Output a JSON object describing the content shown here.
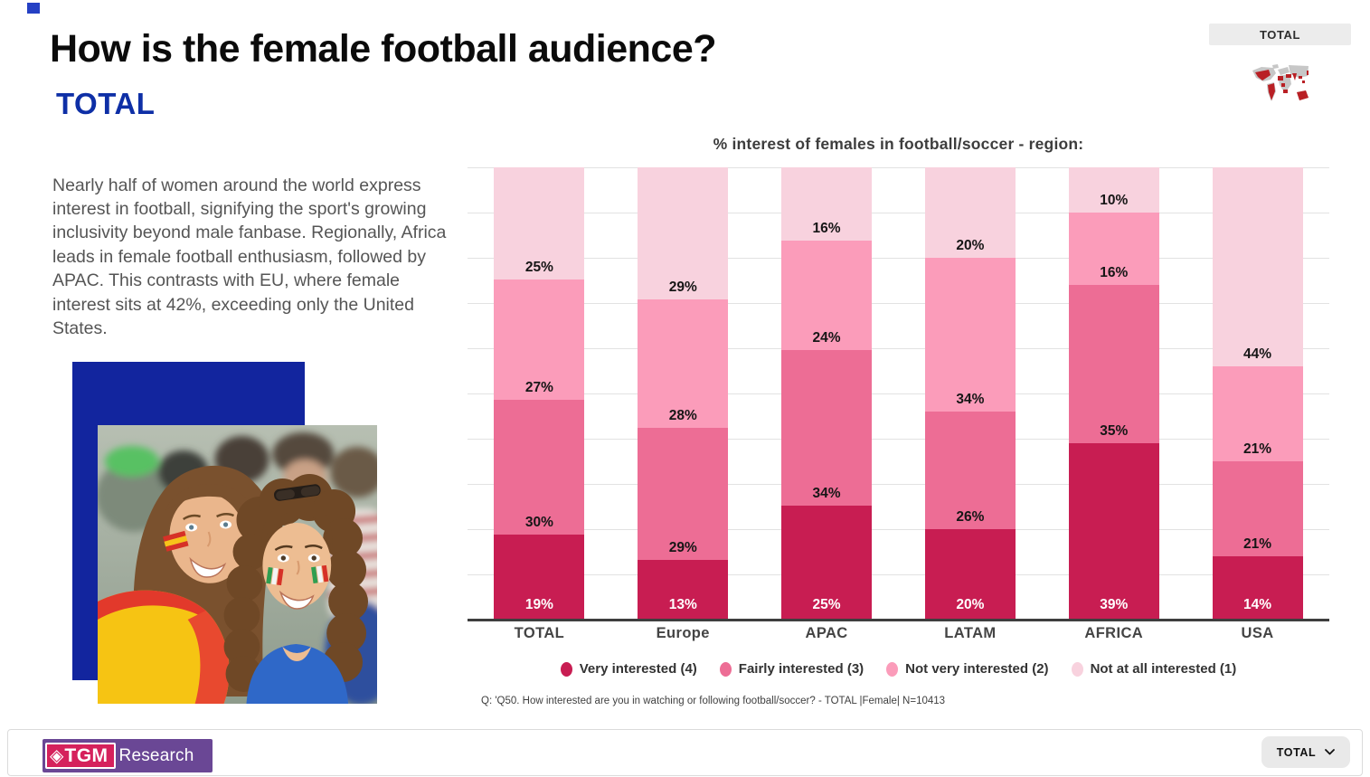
{
  "header": {
    "title": "How is the female football audience?",
    "subtitle": "TOTAL",
    "description": "Nearly half of women around the world express interest in football, signifying the sport's growing inclusivity beyond male fanbase. Regionally, Africa leads in female football enthusiasm, followed by APAC. This contrasts with EU, where female interest sits at 42%, exceeding only the United States."
  },
  "region_selector": {
    "label": "TOTAL"
  },
  "chart_data": {
    "type": "bar",
    "variant": "stacked-100-percent",
    "title": "% interest of females in football/soccer -  region:",
    "categories": [
      "TOTAL",
      "Europe",
      "APAC",
      "LATAM",
      "AFRICA",
      "USA"
    ],
    "series": [
      {
        "name": "Very interested (4)",
        "color": "#c81d52",
        "values": [
          19,
          13,
          25,
          20,
          39,
          14
        ]
      },
      {
        "name": "Fairly interested (3)",
        "color": "#ed6d95",
        "values": [
          30,
          29,
          34,
          26,
          35,
          21
        ]
      },
      {
        "name": "Not very interested (2)",
        "color": "#fb9cba",
        "values": [
          27,
          28,
          24,
          34,
          16,
          21
        ]
      },
      {
        "name": "Not at all interested (1)",
        "color": "#f8d2de",
        "values": [
          25,
          29,
          16,
          20,
          10,
          44
        ]
      }
    ],
    "value_suffix": "%",
    "ylim": [
      0,
      100
    ],
    "gridline_step_percent": 10,
    "grid": true,
    "legend_position": "bottom"
  },
  "footnote": "Q: 'Q50. How interested are you in watching or following football/soccer? - TOTAL |Female| N=10413",
  "footer": {
    "logo_tgm": "TGM",
    "logo_research": "Research",
    "region_dropdown_label": "TOTAL"
  },
  "icons": {
    "logo_diamond": "◈",
    "dropdown_chevron": "chevron-down"
  },
  "colors": {
    "accent_blue": "#12259e",
    "subtitle_blue": "#0e2fa6",
    "very_interested": "#c81d52",
    "fairly_interested": "#ed6d95",
    "not_very_interested": "#fb9cba",
    "not_at_all_interested": "#f8d2de"
  }
}
